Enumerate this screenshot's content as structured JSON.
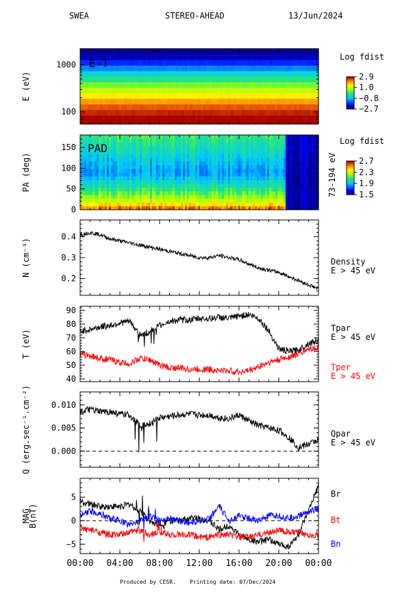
{
  "header": {
    "instrument": "SWEA",
    "spacecraft": "STEREO-AHEAD",
    "date": "13/Jun/2024"
  },
  "footer": {
    "produced": "Produced by CESR.",
    "printing": "Printing date: 07/Dec/2024"
  },
  "x_axis": {
    "ticks": [
      "00:00",
      "04:00",
      "08:00",
      "12:00",
      "16:00",
      "20:00",
      "00:00"
    ],
    "range_hours": [
      0,
      24
    ]
  },
  "chart_data": [
    {
      "type": "heatmap",
      "ylabel": "E (eV)",
      "inner_label": "E-T",
      "yscale": "log",
      "ylim": [
        55,
        2200
      ],
      "y_ticks": [
        {
          "value": 1000,
          "label": "1000"
        },
        {
          "value": 100,
          "label": "100"
        }
      ],
      "colorbar": {
        "title": "Log fdist",
        "range": [
          -2.7,
          2.9
        ],
        "tick_labels": [
          "2.9",
          "1.0",
          "−0.8",
          "−2.7"
        ]
      },
      "bands": [
        {
          "energy_ev": 1900,
          "log_fdist": -2.8
        },
        {
          "energy_ev": 1450,
          "log_fdist": -2.4
        },
        {
          "energy_ev": 1100,
          "log_fdist": -1.8
        },
        {
          "energy_ev": 840,
          "log_fdist": -1.2
        },
        {
          "energy_ev": 640,
          "log_fdist": -0.5
        },
        {
          "energy_ev": 490,
          "log_fdist": 0.0
        },
        {
          "energy_ev": 370,
          "log_fdist": 0.5
        },
        {
          "energy_ev": 280,
          "log_fdist": 1.0
        },
        {
          "energy_ev": 215,
          "log_fdist": 1.5
        },
        {
          "energy_ev": 165,
          "log_fdist": 2.0
        },
        {
          "energy_ev": 125,
          "log_fdist": 2.4
        },
        {
          "energy_ev": 95,
          "log_fdist": 2.7
        },
        {
          "energy_ev": 72,
          "log_fdist": 2.9
        },
        {
          "energy_ev": 58,
          "log_fdist": 3.1
        }
      ]
    },
    {
      "type": "heatmap",
      "ylabel": "PA (deg)",
      "inner_label": "PAD",
      "right_label": "73-194 eV",
      "ylim": [
        0,
        180
      ],
      "y_ticks": [
        {
          "value": 150,
          "label": "150"
        },
        {
          "value": 100,
          "label": "100"
        },
        {
          "value": 50,
          "label": "50"
        },
        {
          "value": 0,
          "label": "0"
        }
      ],
      "colorbar": {
        "title": "Log fdist",
        "range": [
          1.5,
          2.7
        ],
        "tick_labels": [
          "2.7",
          "2.3",
          "1.9",
          "1.5"
        ]
      },
      "regimes": [
        {
          "from_hours": 0,
          "to_hours": 20.7,
          "near_0_deg": 2.7,
          "near_90_deg": 1.85,
          "near_180_deg": 2.1
        },
        {
          "from_hours": 20.7,
          "to_hours": 24,
          "near_0_deg": 1.55,
          "near_90_deg": 1.55,
          "near_180_deg": 1.6
        }
      ]
    },
    {
      "type": "line",
      "ylabel": "N (cm⁻³)",
      "ylim": [
        0.12,
        0.48
      ],
      "y_ticks": [
        {
          "value": 0.4,
          "label": "0.4"
        },
        {
          "value": 0.3,
          "label": "0.3"
        },
        {
          "value": 0.2,
          "label": "0.2"
        }
      ],
      "series": [
        {
          "name": "Density",
          "sub": "E > 45 eV",
          "color": "#000000",
          "x_hours": [
            0,
            1,
            2,
            3,
            4,
            5,
            6,
            7,
            8,
            9,
            10,
            11,
            12,
            13,
            14,
            15,
            16,
            17,
            18,
            19,
            20,
            21,
            22,
            23,
            24
          ],
          "y": [
            0.41,
            0.42,
            0.41,
            0.39,
            0.38,
            0.37,
            0.36,
            0.35,
            0.34,
            0.33,
            0.32,
            0.31,
            0.3,
            0.3,
            0.31,
            0.3,
            0.29,
            0.27,
            0.25,
            0.24,
            0.23,
            0.21,
            0.19,
            0.17,
            0.15
          ]
        }
      ]
    },
    {
      "type": "line",
      "ylabel": "T (eV)",
      "ylim": [
        38,
        93
      ],
      "y_ticks": [
        {
          "value": 90,
          "label": "90"
        },
        {
          "value": 80,
          "label": "80"
        },
        {
          "value": 70,
          "label": "70"
        },
        {
          "value": 60,
          "label": "60"
        },
        {
          "value": 50,
          "label": "50"
        },
        {
          "value": 40,
          "label": "40"
        }
      ],
      "series": [
        {
          "name": "Tpar",
          "sub": "E > 45 eV",
          "color": "#000000",
          "x_hours": [
            0,
            1,
            2,
            3,
            4,
            5,
            6,
            7,
            8,
            9,
            10,
            11,
            12,
            13,
            14,
            15,
            16,
            17,
            18,
            19,
            20,
            21,
            22,
            23,
            24
          ],
          "y": [
            75,
            76,
            78,
            79,
            81,
            82,
            72,
            74,
            79,
            82,
            83,
            83,
            84,
            84,
            85,
            84,
            86,
            87,
            84,
            75,
            62,
            60,
            61,
            66,
            68
          ]
        },
        {
          "name": "Tper",
          "sub": "E > 45 eV",
          "color": "#ff0000",
          "x_hours": [
            0,
            1,
            2,
            3,
            4,
            5,
            6,
            7,
            8,
            9,
            10,
            11,
            12,
            13,
            14,
            15,
            16,
            17,
            18,
            19,
            20,
            21,
            22,
            23,
            24
          ],
          "y": [
            58,
            57,
            55,
            54,
            52,
            51,
            55,
            54,
            50,
            48,
            48,
            47,
            47,
            47,
            46,
            46,
            45,
            46,
            49,
            52,
            54,
            56,
            58,
            62,
            63
          ]
        }
      ]
    },
    {
      "type": "line",
      "ylabel": "Q (erg.sec⁻¹.cm⁻²)",
      "ylim": [
        -0.0035,
        0.0128
      ],
      "y_ticks": [
        {
          "value": 0.01,
          "label": "0.010"
        },
        {
          "value": 0.005,
          "label": "0.005"
        },
        {
          "value": 0.0,
          "label": "0.000"
        }
      ],
      "zero_line": true,
      "series": [
        {
          "name": "Qpar",
          "sub": "E > 45 eV",
          "color": "#000000",
          "x_hours": [
            0,
            1,
            2,
            3,
            4,
            5,
            6,
            7,
            8,
            9,
            10,
            11,
            12,
            13,
            14,
            15,
            16,
            17,
            18,
            19,
            20,
            21,
            22,
            23,
            24
          ],
          "y": [
            0.0085,
            0.009,
            0.0085,
            0.0085,
            0.008,
            0.0078,
            0.0055,
            0.006,
            0.0072,
            0.0075,
            0.0078,
            0.008,
            0.0078,
            0.0078,
            0.0072,
            0.007,
            0.0078,
            0.0065,
            0.0055,
            0.005,
            0.0045,
            0.003,
            0.0008,
            0.0015,
            0.0025
          ]
        }
      ]
    },
    {
      "type": "line",
      "ylabel": "MAG",
      "ylabel2": "B(nT)",
      "ylim": [
        -7,
        9
      ],
      "y_ticks": [
        {
          "value": 5,
          "label": "5"
        },
        {
          "value": 0,
          "label": "0"
        },
        {
          "value": -5,
          "label": "−5"
        }
      ],
      "zero_line": true,
      "series": [
        {
          "name": "Br",
          "color": "#000000",
          "x_hours": [
            0,
            1,
            2,
            3,
            4,
            5,
            6,
            7,
            8,
            9,
            10,
            11,
            12,
            13,
            14,
            15,
            16,
            17,
            18,
            19,
            20,
            21,
            22,
            23,
            24
          ],
          "y": [
            4,
            3.5,
            3,
            3,
            3,
            3.5,
            2,
            0,
            -1,
            0,
            0,
            0.5,
            0.5,
            0,
            -2,
            -1,
            -3,
            -4,
            -4.5,
            -4,
            -5,
            -5.5,
            -3,
            2,
            7.5
          ]
        },
        {
          "name": "Bt",
          "color": "#ff0000",
          "x_hours": [
            0,
            1,
            2,
            3,
            4,
            5,
            6,
            7,
            8,
            9,
            10,
            11,
            12,
            13,
            14,
            15,
            16,
            17,
            18,
            19,
            20,
            21,
            22,
            23,
            24
          ],
          "y": [
            -1.5,
            -2,
            -2.5,
            -3,
            -3,
            -2.5,
            -2,
            -3,
            -2.5,
            -3,
            -3,
            -3,
            -3.5,
            -3.5,
            -3,
            -3,
            -3.5,
            -3.5,
            -3,
            -2.5,
            -2,
            -2.5,
            -2.5,
            -3,
            -3
          ]
        },
        {
          "name": "Bn",
          "color": "#0000ff",
          "x_hours": [
            0,
            1,
            2,
            3,
            4,
            5,
            6,
            7,
            8,
            9,
            10,
            11,
            12,
            13,
            14,
            15,
            16,
            17,
            18,
            19,
            20,
            21,
            22,
            23,
            24
          ],
          "y": [
            1,
            2,
            1.5,
            0.5,
            0,
            -1,
            0,
            1,
            0,
            0.5,
            0,
            -0.5,
            0,
            0.5,
            3,
            0,
            1,
            0.5,
            0,
            1,
            1,
            0.5,
            1,
            2,
            2.5
          ]
        }
      ]
    }
  ]
}
